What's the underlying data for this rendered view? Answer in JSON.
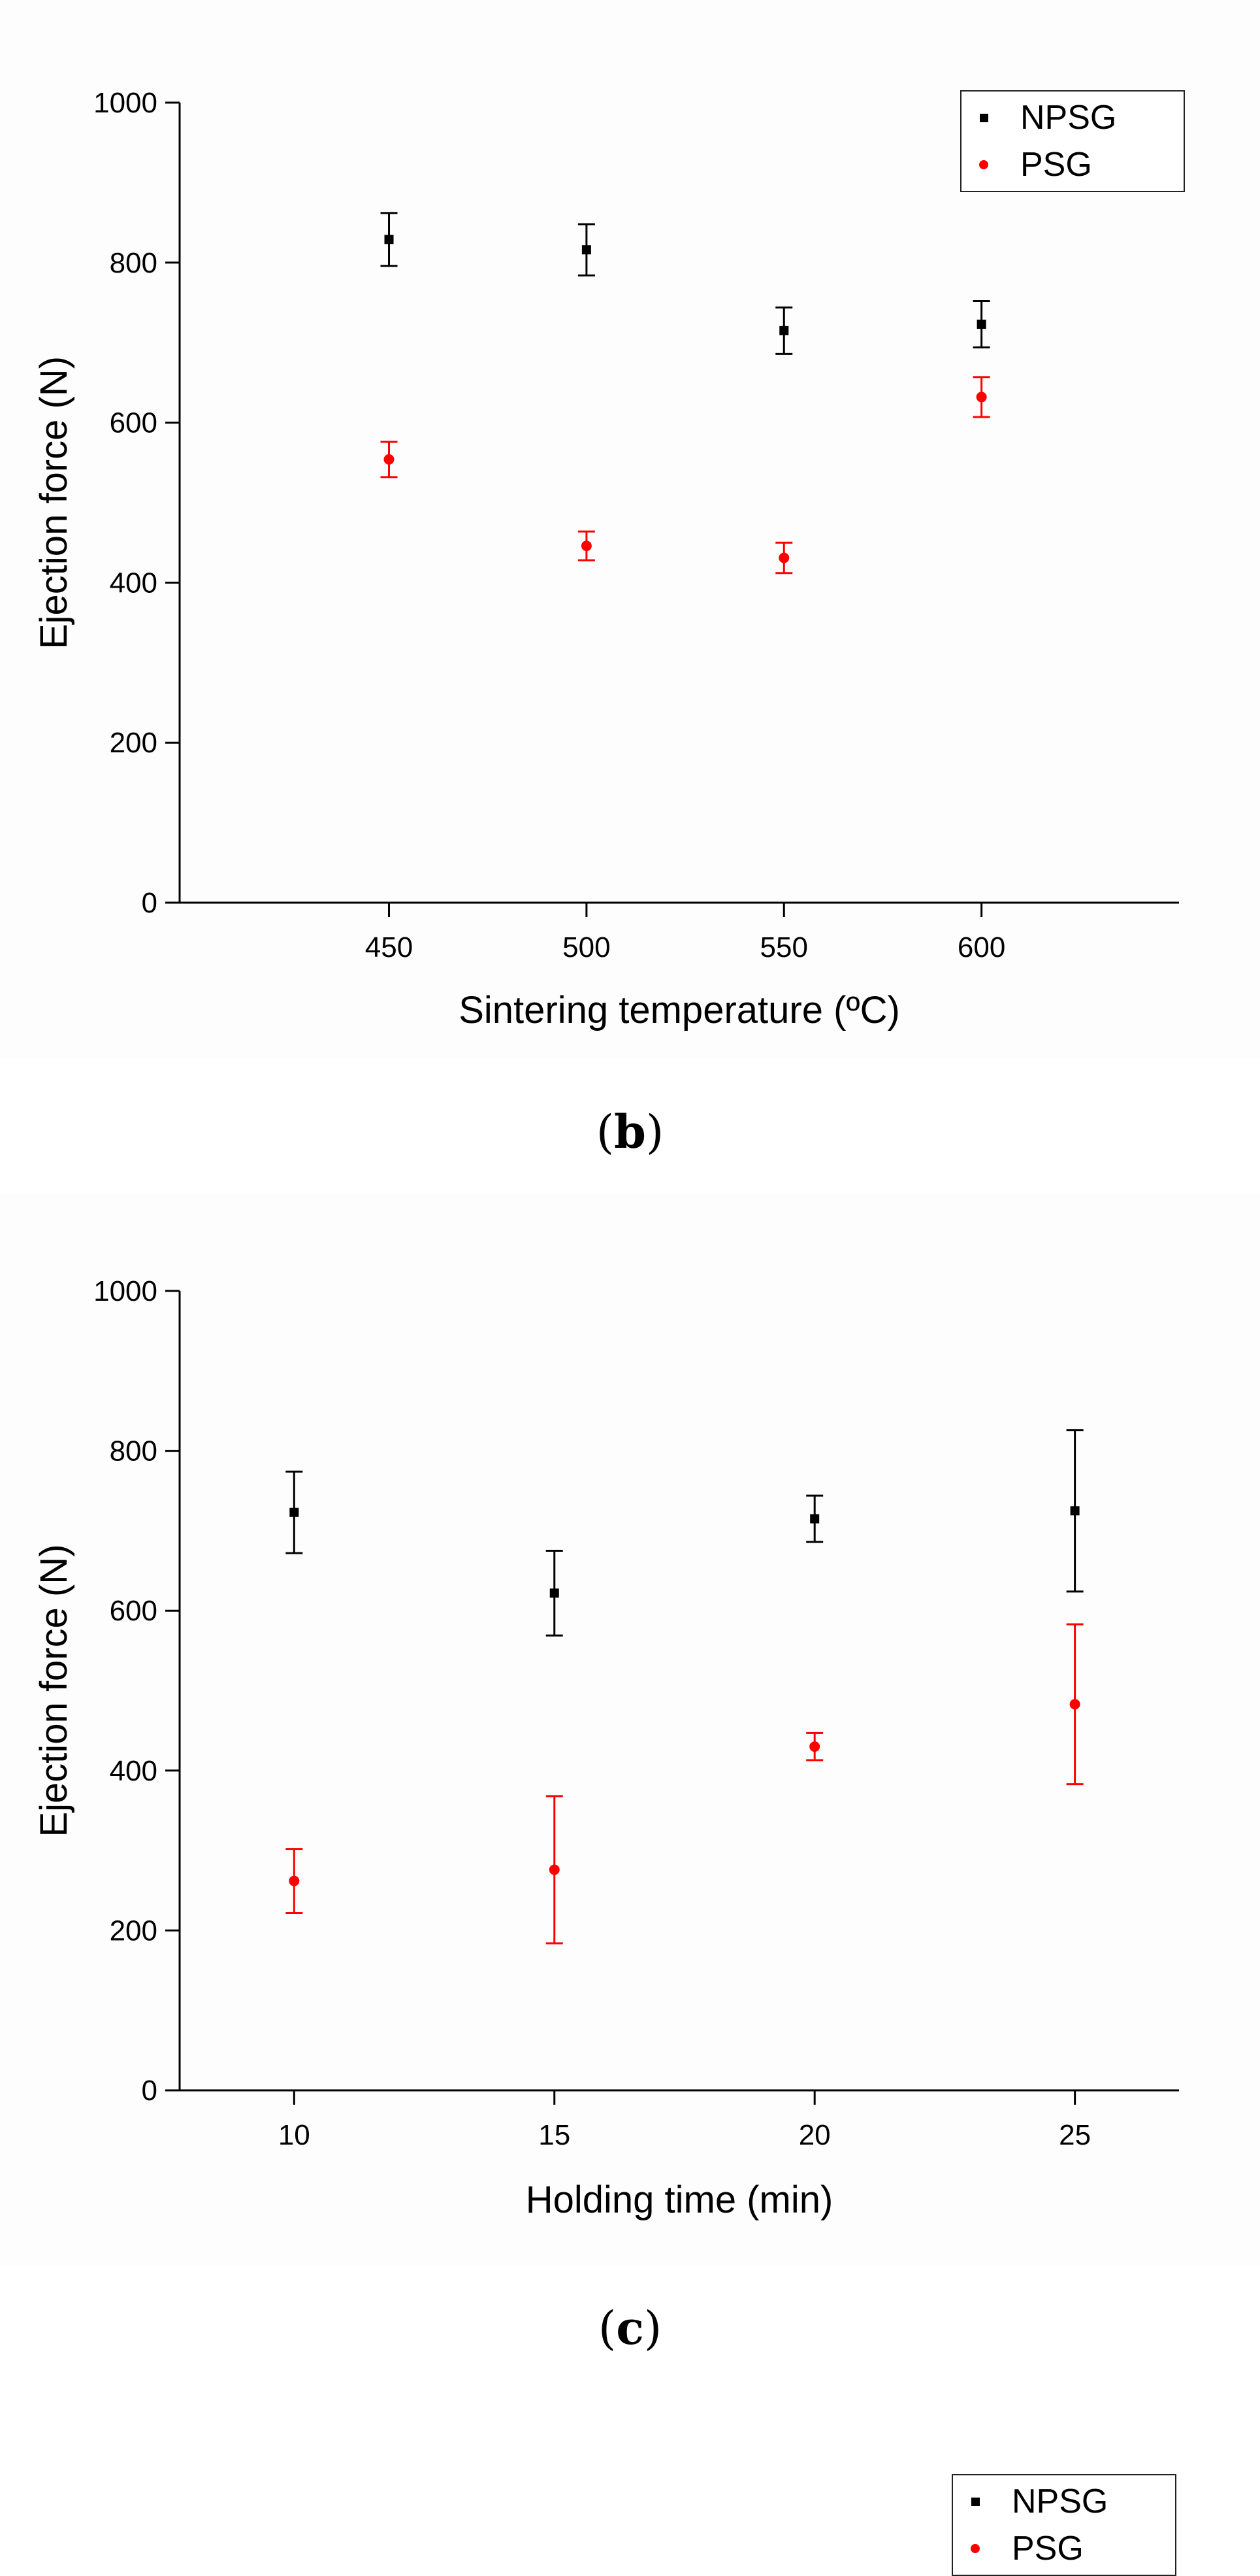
{
  "chart_data": [
    {
      "panel": "b",
      "type": "scatter",
      "caption_letter": "b",
      "xlabel": "Sintering temperature (ºC)",
      "ylabel": "Ejection force (N)",
      "xlim": [
        397,
        650
      ],
      "ylim": [
        0,
        1000
      ],
      "xticks": [
        450,
        500,
        550,
        600
      ],
      "yticks": [
        0,
        200,
        400,
        600,
        800,
        1000
      ],
      "legend_position": "top-right",
      "series": [
        {
          "name": "NPSG",
          "color": "#000000",
          "marker": "square",
          "x": [
            450,
            500,
            550,
            600
          ],
          "y": [
            829,
            816,
            715,
            723
          ],
          "err": [
            33,
            32,
            29,
            29
          ]
        },
        {
          "name": "PSG",
          "color": "#ff0000",
          "marker": "circle",
          "x": [
            450,
            500,
            550,
            600
          ],
          "y": [
            554,
            446,
            431,
            632
          ],
          "err": [
            22,
            18,
            19,
            25
          ]
        }
      ]
    },
    {
      "panel": "c",
      "type": "scatter",
      "caption_letter": "c",
      "xlabel": "Holding time (min)",
      "ylabel": "Ejection force (N)",
      "xlim": [
        7.8,
        27
      ],
      "ylim": [
        0,
        1000
      ],
      "xticks": [
        10,
        15,
        20,
        25
      ],
      "yticks": [
        0,
        200,
        400,
        600,
        800,
        1000
      ],
      "legend_position": "top-right",
      "series": [
        {
          "name": "NPSG",
          "color": "#000000",
          "marker": "square",
          "x": [
            10,
            15,
            20,
            25
          ],
          "y": [
            723,
            622,
            715,
            725
          ],
          "err": [
            51,
            53,
            29,
            101
          ]
        },
        {
          "name": "PSG",
          "color": "#ff0000",
          "marker": "circle",
          "x": [
            10,
            15,
            20,
            25
          ],
          "y": [
            262,
            276,
            430,
            483
          ],
          "err": [
            40,
            92,
            17,
            100
          ]
        }
      ]
    }
  ]
}
